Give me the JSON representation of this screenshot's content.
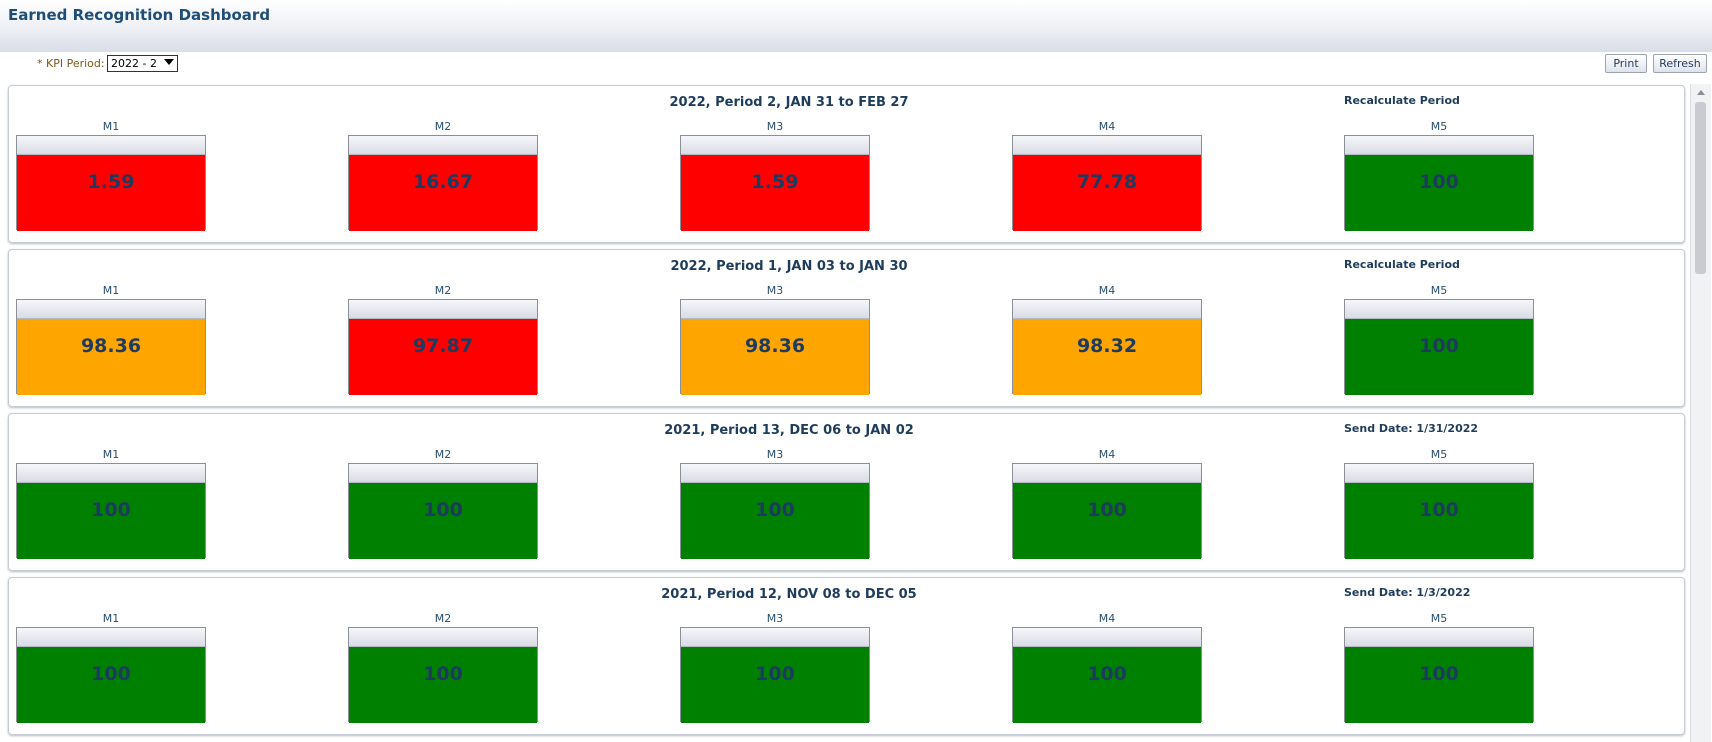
{
  "app": {
    "title": "Earned Recognition Dashboard"
  },
  "filters": {
    "kpi_label": "* KPI Period:",
    "kpi_value": "2022 - 2"
  },
  "toolbar": {
    "print_label": "Print",
    "refresh_label": "Refresh"
  },
  "colors": {
    "red": "#ff0000",
    "orange": "#ffa500",
    "green": "#008000"
  },
  "periods": [
    {
      "title": "2022, Period 2, JAN 31 to FEB 27",
      "action": "Recalculate Period",
      "metrics": [
        {
          "label": "M1",
          "value": "1.59",
          "status": "red"
        },
        {
          "label": "M2",
          "value": "16.67",
          "status": "red"
        },
        {
          "label": "M3",
          "value": "1.59",
          "status": "red"
        },
        {
          "label": "M4",
          "value": "77.78",
          "status": "red"
        },
        {
          "label": "M5",
          "value": "100",
          "status": "green"
        }
      ]
    },
    {
      "title": "2022, Period 1, JAN 03 to JAN 30",
      "action": "Recalculate Period",
      "metrics": [
        {
          "label": "M1",
          "value": "98.36",
          "status": "orange"
        },
        {
          "label": "M2",
          "value": "97.87",
          "status": "red"
        },
        {
          "label": "M3",
          "value": "98.36",
          "status": "orange"
        },
        {
          "label": "M4",
          "value": "98.32",
          "status": "orange"
        },
        {
          "label": "M5",
          "value": "100",
          "status": "green"
        }
      ]
    },
    {
      "title": "2021, Period 13, DEC 06 to JAN 02",
      "action": "Send Date: 1/31/2022",
      "metrics": [
        {
          "label": "M1",
          "value": "100",
          "status": "green"
        },
        {
          "label": "M2",
          "value": "100",
          "status": "green"
        },
        {
          "label": "M3",
          "value": "100",
          "status": "green"
        },
        {
          "label": "M4",
          "value": "100",
          "status": "green"
        },
        {
          "label": "M5",
          "value": "100",
          "status": "green"
        }
      ]
    },
    {
      "title": "2021, Period 12, NOV 08 to DEC 05",
      "action": "Send Date: 1/3/2022",
      "metrics": [
        {
          "label": "M1",
          "value": "100",
          "status": "green"
        },
        {
          "label": "M2",
          "value": "100",
          "status": "green"
        },
        {
          "label": "M3",
          "value": "100",
          "status": "green"
        },
        {
          "label": "M4",
          "value": "100",
          "status": "green"
        },
        {
          "label": "M5",
          "value": "100",
          "status": "green"
        }
      ]
    }
  ]
}
